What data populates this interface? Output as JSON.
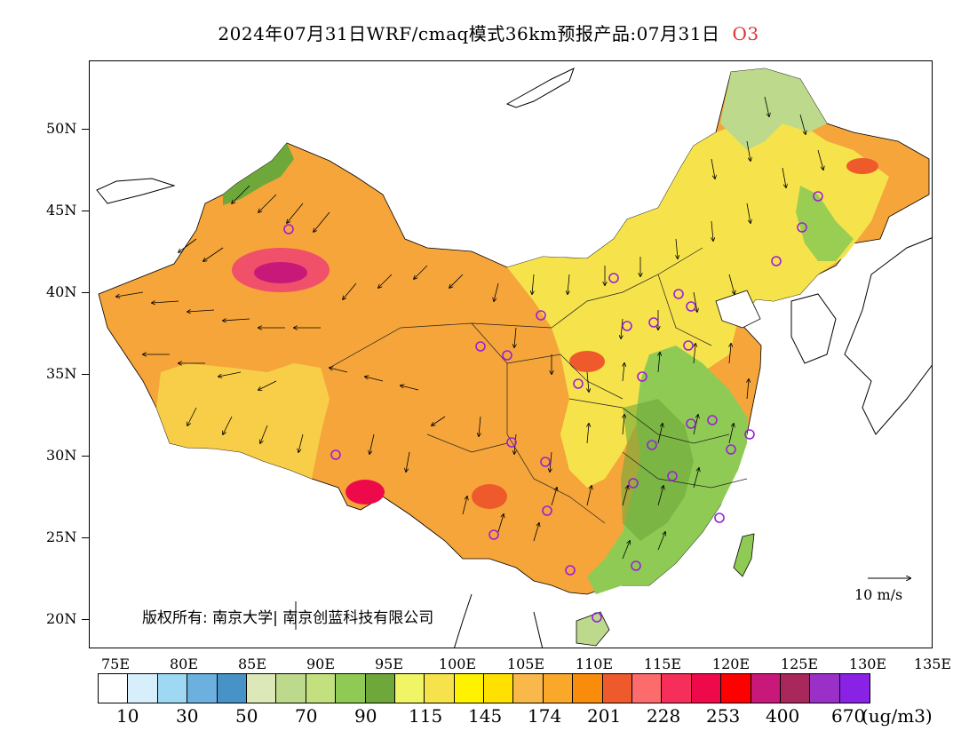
{
  "title": {
    "main": "2024年07月31日WRF/cmaq模式36km预报产品:07月31日",
    "species": "O3"
  },
  "axes": {
    "y_labels": [
      "50N",
      "45N",
      "40N",
      "35N",
      "30N",
      "25N",
      "20N"
    ],
    "x_labels": [
      "75E",
      "80E",
      "85E",
      "90E",
      "95E",
      "100E",
      "105E",
      "110E",
      "115E",
      "120E",
      "125E",
      "130E",
      "135E"
    ]
  },
  "colorbar": {
    "colors": [
      "#ffffff",
      "#d6effa",
      "#9fd8f3",
      "#6bb0de",
      "#4792c6",
      "#dde8b8",
      "#bcd98c",
      "#c3e07f",
      "#8fcb54",
      "#6ea83a",
      "#f0f566",
      "#f6e34c",
      "#fff200",
      "#ffe000",
      "#f8b84a",
      "#f9a82a",
      "#f98c0a",
      "#ef5a2c",
      "#fd6c6c",
      "#f52e5a",
      "#ee0a4a",
      "#ff0000",
      "#c8187a",
      "#a8285c",
      "#9a30c8",
      "#8a22e6"
    ],
    "labels": [
      "10",
      "30",
      "50",
      "70",
      "90",
      "115",
      "145",
      "174",
      "201",
      "228",
      "253",
      "400",
      "670"
    ],
    "unit": "(ug/m3)"
  },
  "copyright": "版权所有: 南京大学| 南京创蓝科技有限公司",
  "wind_legend": "10 m/s",
  "map_colors": {
    "orange": "#f5a53a",
    "yellow": "#f6e34c",
    "green": "#8fcb54",
    "red": "#ef3a5a",
    "purple": "#a020c8"
  }
}
